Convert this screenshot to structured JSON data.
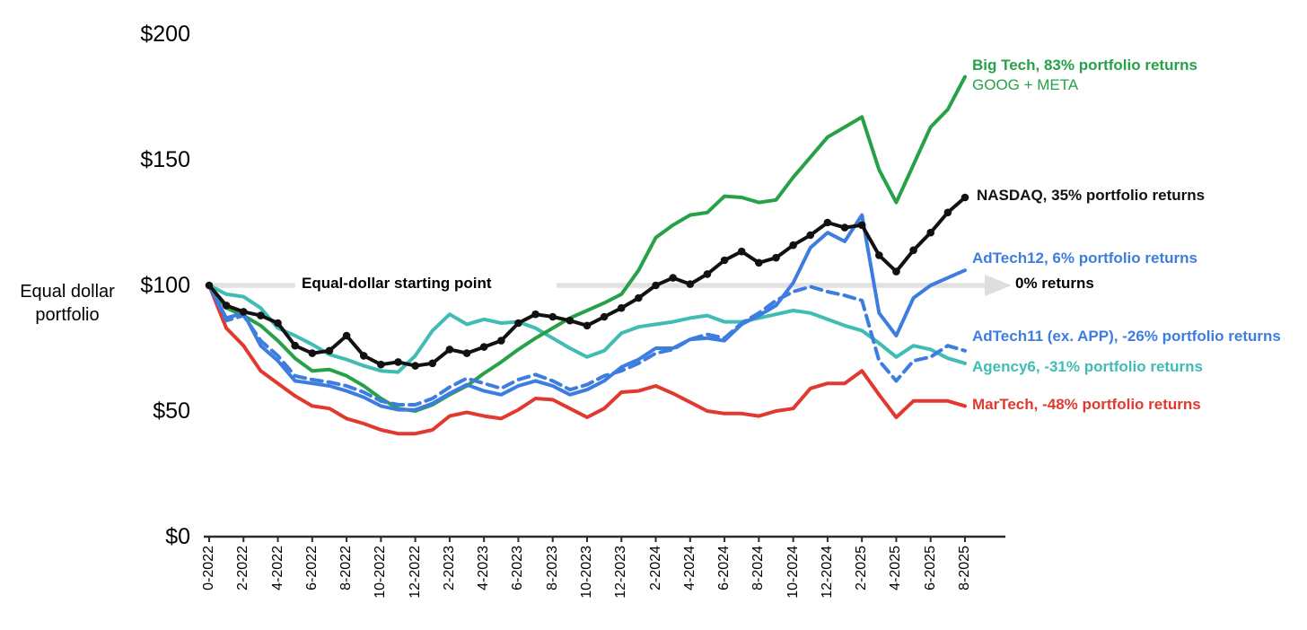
{
  "chart_data": {
    "type": "line",
    "title": "",
    "ylabel": "Equal dollar portfolio",
    "ylim": [
      0,
      200
    ],
    "grid": false,
    "legend_position": "right-of-line-ends",
    "y_ticks": [
      {
        "value": 0,
        "label": "$0"
      },
      {
        "value": 50,
        "label": "$50"
      },
      {
        "value": 100,
        "label": "$100"
      },
      {
        "value": 150,
        "label": "$150"
      },
      {
        "value": 200,
        "label": "$200"
      }
    ],
    "x_tick_labels": [
      "0-2022",
      "2-2022",
      "4-2022",
      "6-2022",
      "8-2022",
      "10-2022",
      "12-2022",
      "2-2023",
      "4-2023",
      "6-2023",
      "8-2023",
      "10-2023",
      "12-2023",
      "2-2024",
      "4-2024",
      "6-2024",
      "8-2024",
      "10-2024",
      "12-2024",
      "2-2025",
      "4-2025",
      "6-2025",
      "8-2025"
    ],
    "x_months_total": 45,
    "annotations": {
      "start_line_label": "Equal-dollar starting point",
      "zero_returns_label": "0% returns",
      "start_value": 100,
      "arrow_color": "#e2e2e2"
    },
    "series": [
      {
        "name": "Big Tech",
        "label": "Big Tech, 83% portfolio returns",
        "sublabel": "GOOG + META",
        "color": "#27a148",
        "style": "solid",
        "values": [
          100,
          91,
          88,
          84,
          78,
          71,
          66,
          66.5,
          64,
          60,
          55,
          51,
          50,
          52.5,
          56.5,
          60,
          65,
          69.5,
          74.5,
          79,
          83,
          87,
          90,
          93,
          96.5,
          106,
          119,
          124,
          128,
          129,
          135.5,
          135,
          133,
          134,
          143,
          151,
          159,
          163,
          167,
          146,
          133,
          148,
          163,
          170,
          183
        ]
      },
      {
        "name": "NASDAQ",
        "label": "NASDAQ, 35% portfolio returns",
        "sublabel": "",
        "color": "#111111",
        "style": "solid-dots",
        "values": [
          100,
          92,
          89.5,
          88,
          85,
          76,
          73,
          74,
          80,
          72,
          68.5,
          69.5,
          68,
          69,
          74.5,
          73,
          75.5,
          78,
          85,
          88.5,
          87.5,
          86,
          84,
          87.5,
          91,
          95,
          100,
          103,
          100.5,
          104.5,
          110,
          113.5,
          109,
          111,
          116,
          120,
          125,
          123,
          124,
          112,
          105.5,
          114,
          121,
          129,
          135
        ]
      },
      {
        "name": "AdTech12",
        "label": "AdTech12, 6% portfolio returns",
        "sublabel": "",
        "color": "#3e7de0",
        "style": "solid",
        "values": [
          100,
          87,
          89,
          76,
          70,
          62,
          61,
          60,
          58,
          55.5,
          52,
          50.5,
          50.5,
          53,
          57,
          60.5,
          58,
          56.5,
          60,
          62,
          60,
          56.5,
          58.5,
          62,
          67.5,
          70.5,
          75,
          75,
          78.5,
          79,
          78,
          84.5,
          88,
          92,
          101,
          115,
          121,
          117.5,
          128,
          89,
          80,
          95,
          100,
          103,
          106
        ]
      },
      {
        "name": "AdTech11",
        "label": "AdTech11 (ex. APP), -26% portfolio returns",
        "sublabel": "",
        "color": "#3e7de0",
        "style": "dashed",
        "values": [
          100,
          86,
          88,
          78,
          72,
          64,
          62.5,
          61.5,
          60,
          57.5,
          54,
          52.5,
          52.5,
          55,
          59.5,
          63,
          61,
          59,
          62.5,
          64.5,
          62,
          58.5,
          60.5,
          64,
          66,
          69,
          73,
          74.5,
          78.5,
          80.5,
          79,
          85,
          89,
          94,
          97.5,
          99.5,
          97.5,
          96,
          94,
          70,
          62,
          70,
          71.5,
          76,
          74
        ]
      },
      {
        "name": "Agency6",
        "label": "Agency6, -31% portfolio returns",
        "sublabel": "",
        "color": "#3fbcb4",
        "style": "solid",
        "values": [
          100,
          96.5,
          95.5,
          91,
          83,
          80,
          76.5,
          72.5,
          70.5,
          68,
          66,
          65.5,
          72,
          82,
          88.5,
          84.5,
          86.5,
          85,
          85.5,
          83,
          79,
          75,
          71.5,
          74,
          81,
          83.5,
          84.5,
          85.5,
          87,
          88,
          85.5,
          85.5,
          87,
          88.5,
          90,
          89,
          86.5,
          84,
          82,
          77,
          71.5,
          76,
          74.5,
          71,
          69
        ]
      },
      {
        "name": "MarTech",
        "label": "MarTech, -48% portfolio returns",
        "sublabel": "",
        "color": "#e2392f",
        "style": "solid",
        "values": [
          100,
          83,
          76,
          66,
          61,
          56,
          52,
          51,
          47,
          45,
          42.5,
          41,
          41,
          42.5,
          48,
          49.5,
          48,
          47,
          50.5,
          55,
          54.5,
          51,
          47.5,
          51,
          57.5,
          58,
          60,
          57,
          53.5,
          50,
          49,
          49,
          48,
          50,
          51,
          59,
          61,
          61,
          66,
          56.5,
          47.5,
          54,
          54,
          54,
          52
        ]
      }
    ]
  }
}
